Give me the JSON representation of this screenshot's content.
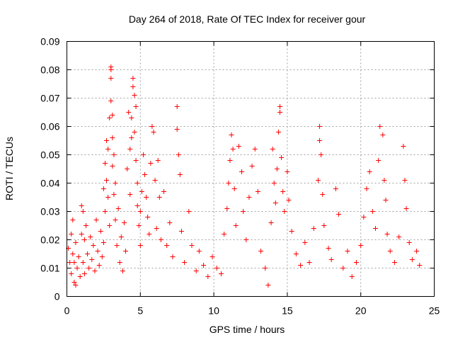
{
  "chart_data": {
    "type": "scatter",
    "title": "Day 264 of 2018, Rate Of TEC Index for receiver gour",
    "xlabel": "GPS time / hours",
    "ylabel": "ROTI / TECUs",
    "xlim": [
      0,
      25
    ],
    "ylim": [
      0,
      0.09
    ],
    "xticks": [
      0,
      5,
      10,
      15,
      20,
      25
    ],
    "xtick_labels": [
      "0",
      "5",
      "10",
      "15",
      "20",
      "25"
    ],
    "yticks": [
      0,
      0.01,
      0.02,
      0.03,
      0.04,
      0.05,
      0.06,
      0.07,
      0.08,
      0.09
    ],
    "ytick_labels": [
      "0",
      "0.01",
      "0.02",
      "0.03",
      "0.04",
      "0.05",
      "0.06",
      "0.07",
      "0.08",
      "0.09"
    ],
    "grid": true,
    "marker": "plus",
    "color": "#ff0000",
    "series": [
      {
        "name": "ROTI",
        "points": [
          [
            0.1,
            0.017
          ],
          [
            0.2,
            0.012
          ],
          [
            0.3,
            0.022
          ],
          [
            0.3,
            0.008
          ],
          [
            0.4,
            0.027
          ],
          [
            0.4,
            0.015
          ],
          [
            0.5,
            0.005
          ],
          [
            0.5,
            0.012
          ],
          [
            0.6,
            0.019
          ],
          [
            0.6,
            0.004
          ],
          [
            0.7,
            0.01
          ],
          [
            0.8,
            0.014
          ],
          [
            0.9,
            0.007
          ],
          [
            1.0,
            0.032
          ],
          [
            1.0,
            0.022
          ],
          [
            1.1,
            0.012
          ],
          [
            1.1,
            0.03
          ],
          [
            1.2,
            0.02
          ],
          [
            1.2,
            0.008
          ],
          [
            1.3,
            0.025
          ],
          [
            1.4,
            0.015
          ],
          [
            1.5,
            0.01
          ],
          [
            1.6,
            0.021
          ],
          [
            1.7,
            0.013
          ],
          [
            1.8,
            0.018
          ],
          [
            1.9,
            0.009
          ],
          [
            2.0,
            0.027
          ],
          [
            2.1,
            0.016
          ],
          [
            2.2,
            0.011
          ],
          [
            2.3,
            0.023
          ],
          [
            2.4,
            0.014
          ],
          [
            2.5,
            0.038
          ],
          [
            2.5,
            0.019
          ],
          [
            2.6,
            0.047
          ],
          [
            2.6,
            0.03
          ],
          [
            2.7,
            0.055
          ],
          [
            2.7,
            0.041
          ],
          [
            2.8,
            0.035
          ],
          [
            2.8,
            0.052
          ],
          [
            2.9,
            0.063
          ],
          [
            2.9,
            0.025
          ],
          [
            3.0,
            0.069
          ],
          [
            3.0,
            0.08
          ],
          [
            3.0,
            0.081
          ],
          [
            3.0,
            0.077
          ],
          [
            3.1,
            0.064
          ],
          [
            3.1,
            0.056
          ],
          [
            3.1,
            0.046
          ],
          [
            3.2,
            0.05
          ],
          [
            3.2,
            0.036
          ],
          [
            3.3,
            0.027
          ],
          [
            3.3,
            0.04
          ],
          [
            3.4,
            0.018
          ],
          [
            3.5,
            0.031
          ],
          [
            3.6,
            0.012
          ],
          [
            3.7,
            0.021
          ],
          [
            3.8,
            0.009
          ],
          [
            3.9,
            0.026
          ],
          [
            4.0,
            0.016
          ],
          [
            4.1,
            0.045
          ],
          [
            4.2,
            0.065
          ],
          [
            4.3,
            0.052
          ],
          [
            4.3,
            0.036
          ],
          [
            4.4,
            0.063
          ],
          [
            4.4,
            0.056
          ],
          [
            4.5,
            0.074
          ],
          [
            4.5,
            0.077
          ],
          [
            4.6,
            0.071
          ],
          [
            4.6,
            0.058
          ],
          [
            4.7,
            0.067
          ],
          [
            4.7,
            0.048
          ],
          [
            4.8,
            0.04
          ],
          [
            4.8,
            0.032
          ],
          [
            4.9,
            0.025
          ],
          [
            5.0,
            0.03
          ],
          [
            5.0,
            0.018
          ],
          [
            5.1,
            0.037
          ],
          [
            5.2,
            0.05
          ],
          [
            5.3,
            0.043
          ],
          [
            5.4,
            0.035
          ],
          [
            5.5,
            0.028
          ],
          [
            5.6,
            0.022
          ],
          [
            5.7,
            0.047
          ],
          [
            5.8,
            0.06
          ],
          [
            5.9,
            0.058
          ],
          [
            6.0,
            0.041
          ],
          [
            6.1,
            0.024
          ],
          [
            6.2,
            0.048
          ],
          [
            6.3,
            0.035
          ],
          [
            6.4,
            0.02
          ],
          [
            6.6,
            0.037
          ],
          [
            6.8,
            0.018
          ],
          [
            7.0,
            0.026
          ],
          [
            7.2,
            0.014
          ],
          [
            7.5,
            0.067
          ],
          [
            7.5,
            0.059
          ],
          [
            7.6,
            0.05
          ],
          [
            7.7,
            0.043
          ],
          [
            7.8,
            0.023
          ],
          [
            8.0,
            0.012
          ],
          [
            8.3,
            0.03
          ],
          [
            8.5,
            0.018
          ],
          [
            8.8,
            0.009
          ],
          [
            9.0,
            0.016
          ],
          [
            9.3,
            0.011
          ],
          [
            9.6,
            0.007
          ],
          [
            9.9,
            0.014
          ],
          [
            10.2,
            0.01
          ],
          [
            10.5,
            0.008
          ],
          [
            10.7,
            0.022
          ],
          [
            10.9,
            0.031
          ],
          [
            11.0,
            0.04
          ],
          [
            11.1,
            0.048
          ],
          [
            11.2,
            0.057
          ],
          [
            11.3,
            0.052
          ],
          [
            11.4,
            0.038
          ],
          [
            11.5,
            0.025
          ],
          [
            11.7,
            0.053
          ],
          [
            11.9,
            0.044
          ],
          [
            12.0,
            0.03
          ],
          [
            12.2,
            0.02
          ],
          [
            12.4,
            0.035
          ],
          [
            12.6,
            0.046
          ],
          [
            12.8,
            0.052
          ],
          [
            13.0,
            0.037
          ],
          [
            13.2,
            0.016
          ],
          [
            13.5,
            0.01
          ],
          [
            13.7,
            0.004
          ],
          [
            13.9,
            0.026
          ],
          [
            14.0,
            0.052
          ],
          [
            14.1,
            0.04
          ],
          [
            14.2,
            0.033
          ],
          [
            14.3,
            0.045
          ],
          [
            14.4,
            0.058
          ],
          [
            14.5,
            0.067
          ],
          [
            14.5,
            0.065
          ],
          [
            14.6,
            0.049
          ],
          [
            14.7,
            0.037
          ],
          [
            14.8,
            0.03
          ],
          [
            15.0,
            0.044
          ],
          [
            15.1,
            0.034
          ],
          [
            15.3,
            0.023
          ],
          [
            15.6,
            0.015
          ],
          [
            15.9,
            0.011
          ],
          [
            16.2,
            0.019
          ],
          [
            16.5,
            0.012
          ],
          [
            16.8,
            0.024
          ],
          [
            17.1,
            0.041
          ],
          [
            17.2,
            0.055
          ],
          [
            17.2,
            0.06
          ],
          [
            17.3,
            0.05
          ],
          [
            17.4,
            0.036
          ],
          [
            17.5,
            0.025
          ],
          [
            17.8,
            0.017
          ],
          [
            18.0,
            0.013
          ],
          [
            18.3,
            0.038
          ],
          [
            18.5,
            0.029
          ],
          [
            18.8,
            0.01
          ],
          [
            19.1,
            0.016
          ],
          [
            19.4,
            0.007
          ],
          [
            19.7,
            0.012
          ],
          [
            20.0,
            0.018
          ],
          [
            20.2,
            0.028
          ],
          [
            20.4,
            0.038
          ],
          [
            20.6,
            0.044
          ],
          [
            20.8,
            0.03
          ],
          [
            21.0,
            0.024
          ],
          [
            21.2,
            0.048
          ],
          [
            21.3,
            0.06
          ],
          [
            21.5,
            0.057
          ],
          [
            21.6,
            0.041
          ],
          [
            21.7,
            0.034
          ],
          [
            21.8,
            0.022
          ],
          [
            22.0,
            0.016
          ],
          [
            22.3,
            0.012
          ],
          [
            22.6,
            0.021
          ],
          [
            22.9,
            0.053
          ],
          [
            23.0,
            0.041
          ],
          [
            23.1,
            0.031
          ],
          [
            23.3,
            0.019
          ],
          [
            23.5,
            0.013
          ],
          [
            23.8,
            0.016
          ],
          [
            24.0,
            0.011
          ]
        ]
      }
    ]
  }
}
